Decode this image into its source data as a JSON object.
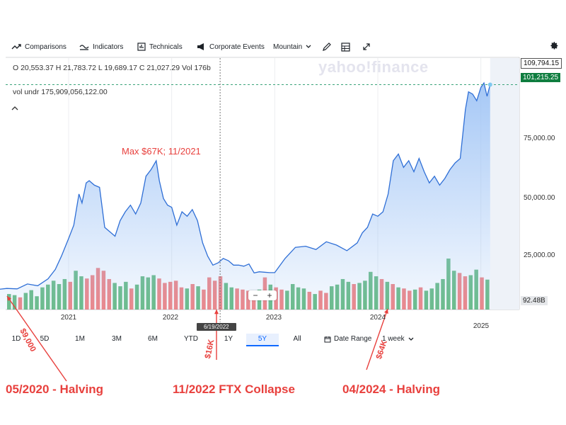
{
  "toolbar": {
    "comparisons": "Comparisons",
    "indicators": "Indicators",
    "technicals": "Technicals",
    "corporate_events": "Corporate Events",
    "chart_style": "Mountain"
  },
  "ohlc": {
    "text": "O 20,553.37  H 21,783.72  L 19,689.17  C 21,027.29  Vol 176b"
  },
  "vol_undr": {
    "text": "vol undr  175,909,056,122.00"
  },
  "watermark": "yahoo!finance",
  "price_axis": {
    "top_price": "109,794.15",
    "current_price": "101,215.25",
    "volume_label": "92.48B",
    "ticks": [
      "75,000.00",
      "50,000.00",
      "25,000.00"
    ]
  },
  "x_axis": {
    "ticks": [
      "2021",
      "2022",
      "2023",
      "2024",
      "2025"
    ],
    "crosshair_date": "6/19/2022"
  },
  "ranges": {
    "items": [
      "1D",
      "5D",
      "1M",
      "3M",
      "6M",
      "YTD",
      "1Y",
      "5Y",
      "All"
    ],
    "active": "5Y",
    "date_range": "Date Range",
    "interval": "1 week"
  },
  "annotations": {
    "max": "Max $67K; 11/2021",
    "p9000": "$9,000",
    "p16k": "$16K",
    "p64k": "$64K"
  },
  "bottom_labels": {
    "halving_2020": "05/2020  - Halving",
    "ftx": "11/2022  FTX Collapse",
    "halving_2024": "04/2024  - Halving"
  },
  "colors": {
    "line": "#2f6fd6",
    "area_top": "#9cc2f5",
    "up_volume": "#4caf6c",
    "down_volume": "#ef6c6c",
    "annotation": "#e8403d",
    "current_price_bg": "#0f7d3f"
  },
  "chart_data": {
    "type": "area",
    "x_unit": "year",
    "x": [
      2020.3,
      2020.4,
      2020.5,
      2020.6,
      2020.7,
      2020.8,
      2020.87,
      2020.93,
      2021.0,
      2021.05,
      2021.1,
      2021.13,
      2021.17,
      2021.2,
      2021.25,
      2021.3,
      2021.35,
      2021.4,
      2021.45,
      2021.5,
      2021.55,
      2021.6,
      2021.65,
      2021.7,
      2021.75,
      2021.8,
      2021.85,
      2021.88,
      2021.92,
      2021.96,
      2022.0,
      2022.05,
      2022.1,
      2022.15,
      2022.2,
      2022.25,
      2022.3,
      2022.35,
      2022.4,
      2022.45,
      2022.5,
      2022.55,
      2022.6,
      2022.65,
      2022.7,
      2022.75,
      2022.8,
      2022.85,
      2022.9,
      2022.95,
      2023.0,
      2023.1,
      2023.2,
      2023.3,
      2023.4,
      2023.5,
      2023.6,
      2023.7,
      2023.8,
      2023.85,
      2023.9,
      2023.95,
      2024.0,
      2024.05,
      2024.1,
      2024.15,
      2024.2,
      2024.25,
      2024.3,
      2024.35,
      2024.4,
      2024.45,
      2024.5,
      2024.55,
      2024.6,
      2024.65,
      2024.7,
      2024.75,
      2024.8,
      2024.85,
      2024.88,
      2024.92,
      2024.96,
      2025.0,
      2025.03,
      2025.06,
      2025.09
    ],
    "values": [
      9000,
      9500,
      9300,
      11500,
      10700,
      13800,
      18000,
      24000,
      32000,
      38000,
      52000,
      48000,
      57000,
      58000,
      56000,
      55000,
      37000,
      35000,
      33000,
      40000,
      44000,
      47000,
      43000,
      48000,
      60000,
      63000,
      67000,
      58000,
      50000,
      47000,
      46000,
      38000,
      44000,
      42000,
      45000,
      40000,
      30000,
      24000,
      20000,
      21000,
      23000,
      22000,
      20000,
      20000,
      19500,
      20500,
      16500,
      17000,
      16800,
      16600,
      16600,
      23000,
      28000,
      28500,
      27000,
      30500,
      29000,
      26500,
      30000,
      34500,
      37000,
      43000,
      42000,
      44000,
      52000,
      67000,
      70000,
      64000,
      67000,
      62000,
      68000,
      62000,
      57000,
      60000,
      56000,
      59000,
      63000,
      66000,
      68000,
      90000,
      98000,
      97000,
      94000,
      100000,
      102000,
      96000,
      101215
    ],
    "ylim": [
      0,
      110000
    ],
    "xlim": [
      2020.3,
      2025.25
    ],
    "volume_unit": "billions",
    "volume": [
      28,
      26,
      22,
      30,
      35,
      24,
      40,
      45,
      52,
      46,
      55,
      50,
      70,
      60,
      56,
      62,
      75,
      70,
      55,
      48,
      42,
      50,
      38,
      45,
      60,
      58,
      62,
      56,
      48,
      50,
      52,
      40,
      38,
      46,
      42,
      36,
      58,
      52,
      60,
      48,
      40,
      38,
      36,
      34,
      32,
      36,
      58,
      45,
      40,
      36,
      34,
      46,
      40,
      38,
      32,
      28,
      34,
      30,
      42,
      45,
      55,
      50,
      46,
      48,
      52,
      68,
      60,
      55,
      50,
      46,
      40,
      38,
      34,
      36,
      40,
      34,
      38,
      48,
      55,
      92,
      70,
      66,
      60,
      62,
      72,
      58,
      54
    ],
    "volume_up": [
      true,
      true,
      false,
      true,
      true,
      true,
      true,
      true,
      true,
      true,
      true,
      false,
      true,
      true,
      false,
      false,
      false,
      false,
      false,
      true,
      true,
      true,
      false,
      true,
      true,
      true,
      true,
      false,
      false,
      false,
      false,
      false,
      true,
      false,
      true,
      false,
      false,
      false,
      false,
      true,
      true,
      false,
      false,
      false,
      false,
      true,
      false,
      true,
      false,
      false,
      true,
      true,
      true,
      true,
      false,
      true,
      false,
      false,
      true,
      true,
      true,
      true,
      false,
      true,
      true,
      true,
      true,
      false,
      true,
      false,
      true,
      false,
      false,
      true,
      false,
      true,
      true,
      true,
      true,
      true,
      true,
      false,
      false,
      true,
      true,
      false,
      true
    ],
    "annotations": [
      {
        "x": 2020.35,
        "y": 9000,
        "text": "$9,000"
      },
      {
        "x": 2021.85,
        "y": 67000,
        "text": "Max $67K; 11/2021"
      },
      {
        "x": 2022.85,
        "y": 16000,
        "text": "$16K"
      },
      {
        "x": 2024.3,
        "y": 64000,
        "text": "$64K"
      }
    ]
  }
}
